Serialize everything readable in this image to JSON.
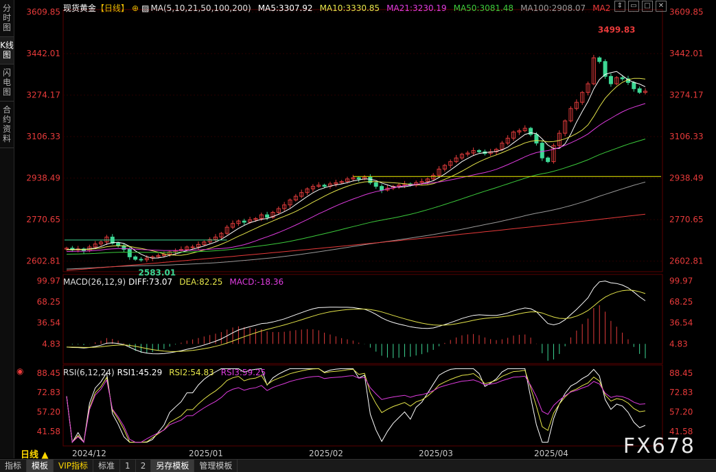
{
  "sidebar": {
    "items": [
      {
        "label": "分时图",
        "active": false
      },
      {
        "label": "K线图",
        "active": true
      },
      {
        "label": "闪电图",
        "active": false
      },
      {
        "label": "合约资料",
        "active": false
      }
    ]
  },
  "header": {
    "symbol": "现货黄金",
    "period_tag": "【日线】",
    "ma_title": "MA(5,10,21,50,100,200)",
    "ma5": "MA5:3307.92",
    "ma10": "MA10:3330.85",
    "ma21": "MA21:3230.19",
    "ma50": "MA50:3081.48",
    "ma100": "MA100:2908.07",
    "ma200": "MA2"
  },
  "macd_header": {
    "title": "MACD(26,12,9)",
    "diff": "DIFF:73.07",
    "dea": "DEA:82.25",
    "macd": "MACD:-18.36"
  },
  "rsi_header": {
    "title": "RSI(6,12,24)",
    "rsi1": "RSI1:45.29",
    "rsi2": "RSI2:54.83",
    "rsi3": "RSI3:59.25"
  },
  "price_axis": [
    "3609.85",
    "3442.01",
    "3274.17",
    "3106.33",
    "2938.49",
    "2770.65",
    "2602.81"
  ],
  "macd_axis": [
    "99.97",
    "68.25",
    "36.54",
    "4.83"
  ],
  "rsi_axis": [
    "88.45",
    "72.83",
    "57.20",
    "41.58"
  ],
  "time_axis": [
    "2024/12",
    "2025/01",
    "2025/02",
    "2025/03",
    "2025/04"
  ],
  "annotations": {
    "high": "3499.83",
    "low": "2583.01",
    "hline": 2945
  },
  "period_label": "日线 ▲",
  "watermark": "FX678",
  "bottom_tabs": [
    {
      "label": "指标",
      "active": false
    },
    {
      "label": "模板",
      "active": true
    },
    {
      "label": "VIP指标",
      "active": false
    },
    {
      "label": "标准",
      "active": false
    },
    {
      "label": "1",
      "active": false
    },
    {
      "label": "2",
      "active": false
    },
    {
      "label": "另存模板",
      "active": true
    },
    {
      "label": "管理模板",
      "active": false
    }
  ],
  "colors": {
    "up": "#e23b3b",
    "down": "#3dd895",
    "ma5": "#ffffff",
    "ma10": "#e6e64a",
    "ma21": "#e03ce0",
    "ma50": "#3ccc3c",
    "ma100": "#9a9a9a",
    "ma200": "#e83a3a",
    "axis_text": "#e83a3a",
    "grid": "#5a0000"
  },
  "chart_data": {
    "type": "candlestick",
    "price_range": [
      2560,
      3620
    ],
    "closes": [
      2655,
      2648,
      2652,
      2645,
      2660,
      2672,
      2680,
      2700,
      2675,
      2665,
      2650,
      2620,
      2610,
      2608,
      2615,
      2620,
      2625,
      2630,
      2640,
      2645,
      2650,
      2660,
      2660,
      2670,
      2680,
      2690,
      2700,
      2715,
      2740,
      2755,
      2765,
      2760,
      2770,
      2775,
      2790,
      2780,
      2800,
      2815,
      2830,
      2850,
      2865,
      2880,
      2895,
      2905,
      2910,
      2905,
      2915,
      2920,
      2925,
      2935,
      2940,
      2935,
      2942,
      2920,
      2905,
      2890,
      2898,
      2905,
      2910,
      2915,
      2910,
      2920,
      2925,
      2935,
      2950,
      2975,
      2990,
      3005,
      3020,
      3035,
      3040,
      3050,
      3045,
      3038,
      3045,
      3055,
      3080,
      3100,
      3125,
      3130,
      3140,
      3115,
      3080,
      3020,
      3005,
      3070,
      3120,
      3170,
      3220,
      3245,
      3285,
      3320,
      3425,
      3410,
      3350,
      3320,
      3345,
      3340,
      3325,
      3300,
      3285,
      3290
    ]
  }
}
